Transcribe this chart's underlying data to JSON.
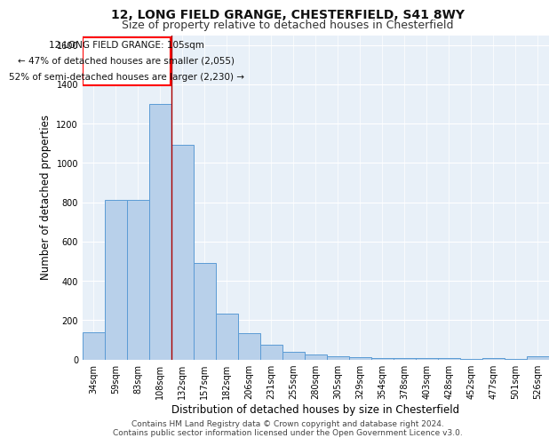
{
  "title1": "12, LONG FIELD GRANGE, CHESTERFIELD, S41 8WY",
  "title2": "Size of property relative to detached houses in Chesterfield",
  "xlabel": "Distribution of detached houses by size in Chesterfield",
  "ylabel": "Number of detached properties",
  "footer1": "Contains HM Land Registry data © Crown copyright and database right 2024.",
  "footer2": "Contains public sector information licensed under the Open Government Licence v3.0.",
  "annotation_line1": "12 LONG FIELD GRANGE: 105sqm",
  "annotation_line2": "← 47% of detached houses are smaller (2,055)",
  "annotation_line3": "52% of semi-detached houses are larger (2,230) →",
  "categories": [
    "34sqm",
    "59sqm",
    "83sqm",
    "108sqm",
    "132sqm",
    "157sqm",
    "182sqm",
    "206sqm",
    "231sqm",
    "255sqm",
    "280sqm",
    "305sqm",
    "329sqm",
    "354sqm",
    "378sqm",
    "403sqm",
    "428sqm",
    "452sqm",
    "477sqm",
    "501sqm",
    "526sqm"
  ],
  "values": [
    140,
    810,
    810,
    1300,
    1090,
    490,
    235,
    135,
    75,
    40,
    25,
    15,
    10,
    8,
    5,
    5,
    5,
    2,
    5,
    2,
    15
  ],
  "bar_color": "#b8d0ea",
  "bar_edge_color": "#5b9bd5",
  "red_line_index": 3,
  "ylim": [
    0,
    1650
  ],
  "yticks": [
    0,
    200,
    400,
    600,
    800,
    1000,
    1200,
    1400,
    1600
  ],
  "background_color": "#e8f0f8",
  "grid_color": "#ffffff",
  "title_fontsize": 10,
  "subtitle_fontsize": 9,
  "tick_fontsize": 7,
  "ylabel_fontsize": 8.5,
  "xlabel_fontsize": 8.5,
  "annotation_fontsize": 7.5,
  "footer_fontsize": 6.5
}
